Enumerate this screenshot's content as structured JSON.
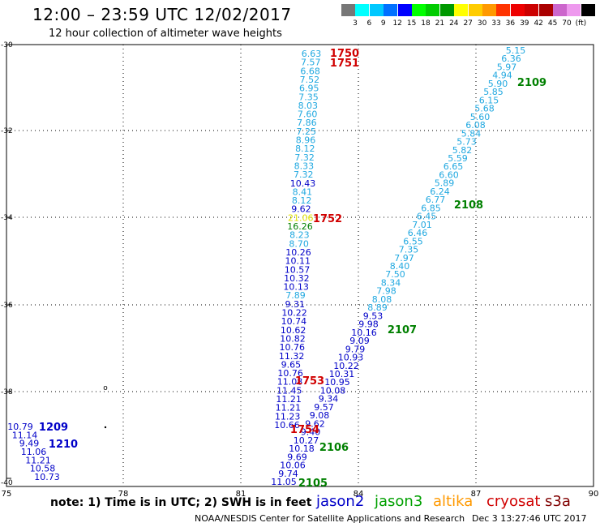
{
  "header": {
    "title": "12:00 – 23:59 UTC 12/02/2017",
    "subtitle": "12 hour collection of altimeter wave heights"
  },
  "legend": {
    "colors": [
      "#777777",
      "#00ffff",
      "#00c8ff",
      "#0070ff",
      "#0000ff",
      "#00ff00",
      "#00cc00",
      "#009900",
      "#ffff00",
      "#ffcc00",
      "#ff9900",
      "#ff3300",
      "#ee0000",
      "#cc0000",
      "#aa0000",
      "#cc66cc",
      "#ee99ee",
      "#000000"
    ],
    "labels": [
      "3",
      "6",
      "9",
      "12",
      "15",
      "18",
      "21",
      "24",
      "27",
      "30",
      "33",
      "36",
      "39",
      "42",
      "45",
      "70",
      "(ft)"
    ]
  },
  "axes": {
    "lat_labels": [
      "-30",
      "-32",
      "-34",
      "-36",
      "-38",
      "-40"
    ],
    "lon_labels": [
      "75",
      "78",
      "81",
      "84",
      "87",
      "90"
    ]
  },
  "colors": {
    "jason2": "#0000c8",
    "jason3": "#008000",
    "altika": "#ff8c00",
    "cryosat": "#d00000",
    "s3a": "#800000",
    "cyan": "#20a8e0",
    "yellow": "#e0e000"
  },
  "track_west": [
    {
      "v": "6.63",
      "c": "cyan"
    },
    {
      "v": "7.57",
      "c": "cyan"
    },
    {
      "v": "6.68",
      "c": "cyan"
    },
    {
      "v": "7.52",
      "c": "cyan"
    },
    {
      "v": "6.95",
      "c": "cyan"
    },
    {
      "v": "7.35",
      "c": "cyan"
    },
    {
      "v": "8.03",
      "c": "cyan"
    },
    {
      "v": "7.60",
      "c": "cyan"
    },
    {
      "v": "7.86",
      "c": "cyan"
    },
    {
      "v": "7.25",
      "c": "cyan"
    },
    {
      "v": "8.96",
      "c": "cyan"
    },
    {
      "v": "8.12",
      "c": "cyan"
    },
    {
      "v": "7.32",
      "c": "cyan"
    },
    {
      "v": "8.33",
      "c": "cyan"
    },
    {
      "v": "7.32",
      "c": "cyan"
    },
    {
      "v": "10.43",
      "c": "jason2"
    },
    {
      "v": "8.41",
      "c": "cyan"
    },
    {
      "v": "8.12",
      "c": "cyan"
    },
    {
      "v": "9.62",
      "c": "jason2"
    },
    {
      "v": "21.06",
      "c": "yellow"
    },
    {
      "v": "16.26",
      "c": "jason3"
    },
    {
      "v": "8.23",
      "c": "cyan"
    },
    {
      "v": "8.70",
      "c": "cyan"
    },
    {
      "v": "10.26",
      "c": "jason2"
    },
    {
      "v": "10.11",
      "c": "jason2"
    },
    {
      "v": "10.57",
      "c": "jason2"
    },
    {
      "v": "10.32",
      "c": "jason2"
    },
    {
      "v": "10.13",
      "c": "jason2"
    },
    {
      "v": "7.89",
      "c": "cyan"
    },
    {
      "v": "9.31",
      "c": "jason2"
    },
    {
      "v": "10.22",
      "c": "jason2"
    },
    {
      "v": "10.74",
      "c": "jason2"
    },
    {
      "v": "10.62",
      "c": "jason2"
    },
    {
      "v": "10.82",
      "c": "jason2"
    },
    {
      "v": "10.76",
      "c": "jason2"
    },
    {
      "v": "11.32",
      "c": "jason2"
    },
    {
      "v": "9.65",
      "c": "jason2"
    },
    {
      "v": "10.76",
      "c": "jason2"
    },
    {
      "v": "11.08",
      "c": "jason2"
    },
    {
      "v": "11.45",
      "c": "jason2"
    },
    {
      "v": "11.21",
      "c": "jason2"
    },
    {
      "v": "11.21",
      "c": "jason2"
    },
    {
      "v": "11.23",
      "c": "jason2"
    },
    {
      "v": "10.66",
      "c": "jason2"
    }
  ],
  "track_east": [
    {
      "v": "5.15",
      "c": "cyan"
    },
    {
      "v": "6.36",
      "c": "cyan"
    },
    {
      "v": "5.97",
      "c": "cyan"
    },
    {
      "v": "4.94",
      "c": "cyan"
    },
    {
      "v": "5.90",
      "c": "cyan"
    },
    {
      "v": "5.85",
      "c": "cyan"
    },
    {
      "v": "6.15",
      "c": "cyan"
    },
    {
      "v": "5.68",
      "c": "cyan"
    },
    {
      "v": "5.60",
      "c": "cyan"
    },
    {
      "v": "6.08",
      "c": "cyan"
    },
    {
      "v": "5.84",
      "c": "cyan"
    },
    {
      "v": "5.73",
      "c": "cyan"
    },
    {
      "v": "5.82",
      "c": "cyan"
    },
    {
      "v": "5.59",
      "c": "cyan"
    },
    {
      "v": "6.65",
      "c": "cyan"
    },
    {
      "v": "6.60",
      "c": "cyan"
    },
    {
      "v": "5.89",
      "c": "cyan"
    },
    {
      "v": "6.24",
      "c": "cyan"
    },
    {
      "v": "6.77",
      "c": "cyan"
    },
    {
      "v": "6.85",
      "c": "cyan"
    },
    {
      "v": "6.45",
      "c": "cyan"
    },
    {
      "v": "7.01",
      "c": "cyan"
    },
    {
      "v": "6.46",
      "c": "cyan"
    },
    {
      "v": "6.55",
      "c": "cyan"
    },
    {
      "v": "7.35",
      "c": "cyan"
    },
    {
      "v": "7.97",
      "c": "cyan"
    },
    {
      "v": "8.40",
      "c": "cyan"
    },
    {
      "v": "7.50",
      "c": "cyan"
    },
    {
      "v": "8.34",
      "c": "cyan"
    },
    {
      "v": "7.98",
      "c": "cyan"
    },
    {
      "v": "8.08",
      "c": "cyan"
    },
    {
      "v": "8.89",
      "c": "cyan"
    },
    {
      "v": "9.53",
      "c": "jason2"
    },
    {
      "v": "9.98",
      "c": "jason2"
    },
    {
      "v": "10.16",
      "c": "jason2"
    },
    {
      "v": "9.09",
      "c": "jason2"
    },
    {
      "v": "9.79",
      "c": "jason2"
    },
    {
      "v": "10.93",
      "c": "jason2"
    },
    {
      "v": "10.22",
      "c": "jason2"
    },
    {
      "v": "10.31",
      "c": "jason2"
    },
    {
      "v": "10.95",
      "c": "jason2"
    },
    {
      "v": "10.08",
      "c": "jason2"
    },
    {
      "v": "9.34",
      "c": "jason2"
    },
    {
      "v": "9.57",
      "c": "jason2"
    },
    {
      "v": "9.08",
      "c": "jason2"
    },
    {
      "v": "9.62",
      "c": "jason2"
    },
    {
      "v": "9.40",
      "c": "jason2"
    },
    {
      "v": "10.27",
      "c": "jason2"
    },
    {
      "v": "10.18",
      "c": "jason2"
    },
    {
      "v": "9.69",
      "c": "jason2"
    },
    {
      "v": "10.06",
      "c": "jason2"
    },
    {
      "v": "9.74",
      "c": "jason2"
    },
    {
      "v": "11.05",
      "c": "jason2"
    }
  ],
  "track_far_west": [
    {
      "v": "10.79",
      "c": "jason2"
    },
    {
      "v": "11.14",
      "c": "jason2"
    },
    {
      "v": "9.49",
      "c": "jason2"
    },
    {
      "v": "11.06",
      "c": "jason2"
    },
    {
      "v": "11.21",
      "c": "jason2"
    },
    {
      "v": "10.58",
      "c": "jason2"
    },
    {
      "v": "10.73",
      "c": "jason2"
    }
  ],
  "time_stamps": [
    {
      "t": "1750",
      "c": "cryosat"
    },
    {
      "t": "1751",
      "c": "cryosat"
    },
    {
      "t": "1752",
      "c": "cryosat"
    },
    {
      "t": "1753",
      "c": "cryosat"
    },
    {
      "t": "1754",
      "c": "cryosat"
    },
    {
      "t": "2109",
      "c": "jason3"
    },
    {
      "t": "2108",
      "c": "jason3"
    },
    {
      "t": "2107",
      "c": "jason3"
    },
    {
      "t": "2106",
      "c": "jason3"
    },
    {
      "t": "2105",
      "c": "jason3"
    },
    {
      "t": "1209",
      "c": "jason2"
    },
    {
      "t": "1210",
      "c": "jason2"
    }
  ],
  "footer": {
    "note": "note:  1) Time is in UTC;  2) SWH is in feet",
    "satellites": [
      {
        "name": "jason2",
        "color": "#0000c8"
      },
      {
        "name": "jason3",
        "color": "#00a000"
      },
      {
        "name": "altika",
        "color": "#ff9900"
      },
      {
        "name": "cryosat",
        "color": "#d00000"
      },
      {
        "name": "s3a",
        "color": "#800000"
      }
    ],
    "credit": "NOAA/NESDIS Center for Satellite Applications and Research",
    "generated": "Dec  3 13:27:46 UTC 2017"
  }
}
